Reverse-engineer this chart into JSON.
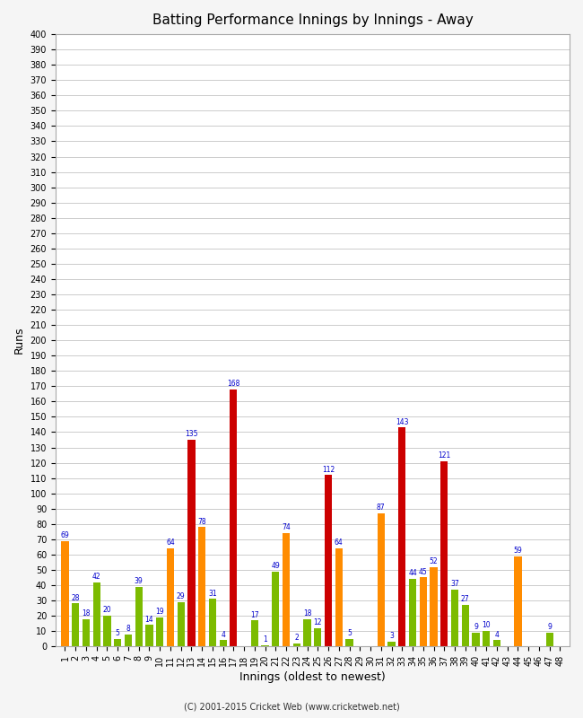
{
  "title": "Batting Performance Innings by Innings - Away",
  "xlabel": "Innings (oldest to newest)",
  "ylabel": "Runs",
  "footer": "(C) 2001-2015 Cricket Web (www.cricketweb.net)",
  "ylim": [
    0,
    400
  ],
  "ytick_step": 10,
  "ytick_max": 400,
  "innings_labels": [
    "1",
    "2",
    "3",
    "4",
    "5",
    "6",
    "7",
    "8",
    "9",
    "10",
    "11",
    "12",
    "13",
    "14",
    "15",
    "16",
    "17",
    "18",
    "19",
    "20",
    "21",
    "22",
    "23",
    "24",
    "25",
    "26",
    "27",
    "28",
    "29",
    "30",
    "31",
    "32",
    "33",
    "34",
    "35",
    "36",
    "37",
    "38",
    "39",
    "40",
    "41",
    "42",
    "43",
    "44",
    "45",
    "46",
    "47",
    "48"
  ],
  "values": [
    69,
    28,
    18,
    42,
    20,
    5,
    8,
    39,
    14,
    19,
    64,
    29,
    135,
    78,
    31,
    4,
    168,
    0,
    17,
    1,
    49,
    74,
    2,
    18,
    12,
    112,
    64,
    5,
    0,
    0,
    87,
    3,
    143,
    44,
    45,
    52,
    121,
    37,
    27,
    9,
    10,
    4,
    0,
    59,
    0,
    0,
    9,
    0
  ],
  "colors": [
    "#ff8c00",
    "#7cbb00",
    "#7cbb00",
    "#7cbb00",
    "#7cbb00",
    "#7cbb00",
    "#7cbb00",
    "#7cbb00",
    "#7cbb00",
    "#7cbb00",
    "#ff8c00",
    "#7cbb00",
    "#cc0000",
    "#ff8c00",
    "#7cbb00",
    "#7cbb00",
    "#cc0000",
    "#7cbb00",
    "#7cbb00",
    "#7cbb00",
    "#7cbb00",
    "#ff8c00",
    "#7cbb00",
    "#7cbb00",
    "#7cbb00",
    "#cc0000",
    "#ff8c00",
    "#7cbb00",
    "#7cbb00",
    "#7cbb00",
    "#ff8c00",
    "#7cbb00",
    "#cc0000",
    "#7cbb00",
    "#ff8c00",
    "#ff8c00",
    "#cc0000",
    "#7cbb00",
    "#7cbb00",
    "#7cbb00",
    "#7cbb00",
    "#7cbb00",
    "#7cbb00",
    "#ff8c00",
    "#7cbb00",
    "#7cbb00",
    "#7cbb00",
    "#7cbb00"
  ],
  "bg_color": "#f5f5f5",
  "plot_bg": "#ffffff",
  "label_color": "#0000cc",
  "grid_color": "#cccccc",
  "title_fontsize": 11,
  "tick_fontsize": 7,
  "label_fontsize": 9
}
